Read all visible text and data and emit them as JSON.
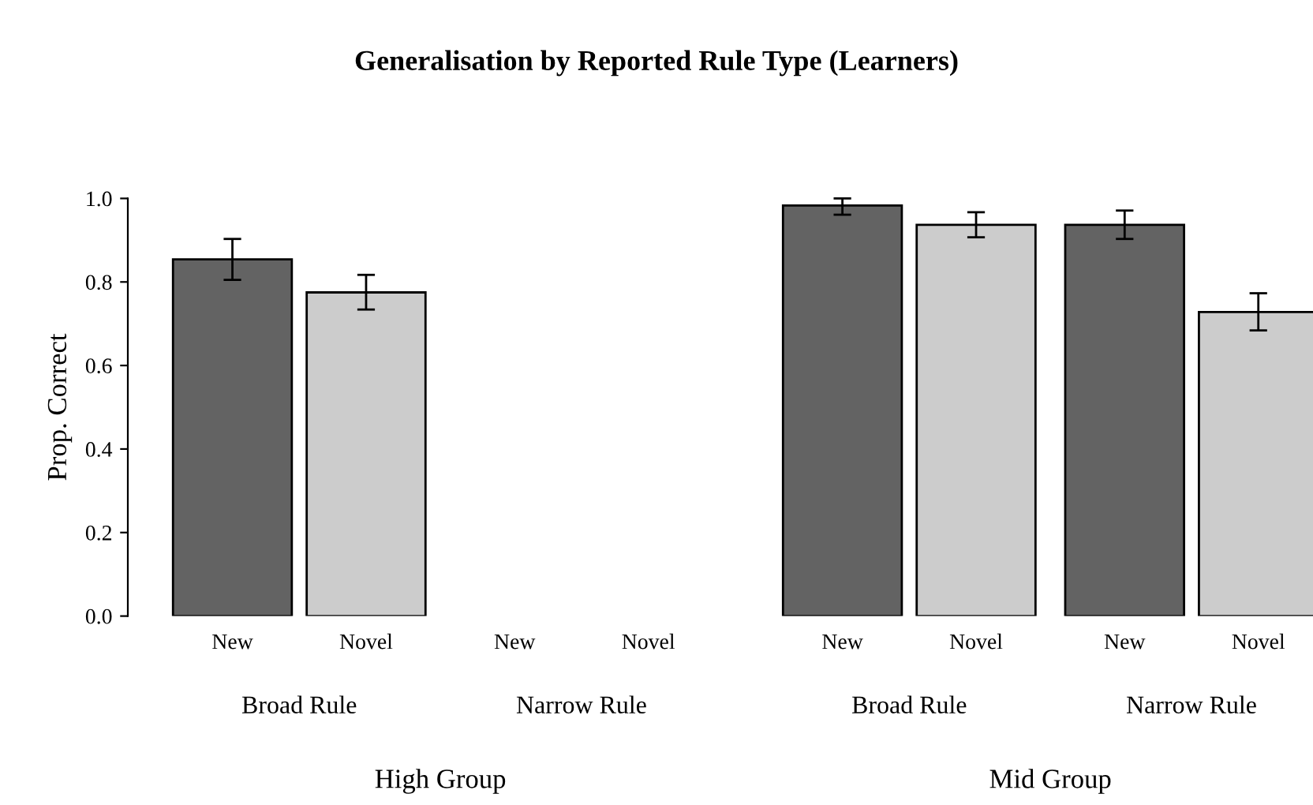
{
  "chart_data": {
    "type": "bar",
    "title": "Generalisation by Reported Rule Type (Learners)",
    "ylabel": "Prop. Correct",
    "categories": [
      "New",
      "Novel",
      "New",
      "Novel",
      "New",
      "Novel",
      "New",
      "Novel"
    ],
    "values": [
      0.854,
      0.775,
      null,
      null,
      0.983,
      0.937,
      0.937,
      0.728
    ],
    "colors": [
      "#636363",
      "#cccccc",
      "#636363",
      "#cccccc",
      "#636363",
      "#cccccc",
      "#636363",
      "#cccccc"
    ],
    "errors": [
      [
        0.805,
        0.903
      ],
      [
        0.734,
        0.817
      ],
      null,
      null,
      [
        0.961,
        1.0
      ],
      [
        0.907,
        0.967
      ],
      [
        0.903,
        0.971
      ],
      [
        0.684,
        0.773
      ]
    ],
    "annotations": [
      "Broad Rule",
      "Narrow Rule",
      "Broad Rule",
      "Narrow Rule",
      "High Group",
      "Mid Group"
    ],
    "ylim": [
      0,
      1
    ],
    "yticks": [
      {
        "value": 0,
        "label": "0.0"
      },
      {
        "value": 0.2,
        "label": "0.2"
      },
      {
        "value": 0.4,
        "label": "0.4"
      },
      {
        "value": 0.6,
        "label": "0.6"
      },
      {
        "value": 0.8,
        "label": "0.8"
      },
      {
        "value": 1,
        "label": "1.0"
      }
    ],
    "grid": false,
    "legend": false
  }
}
